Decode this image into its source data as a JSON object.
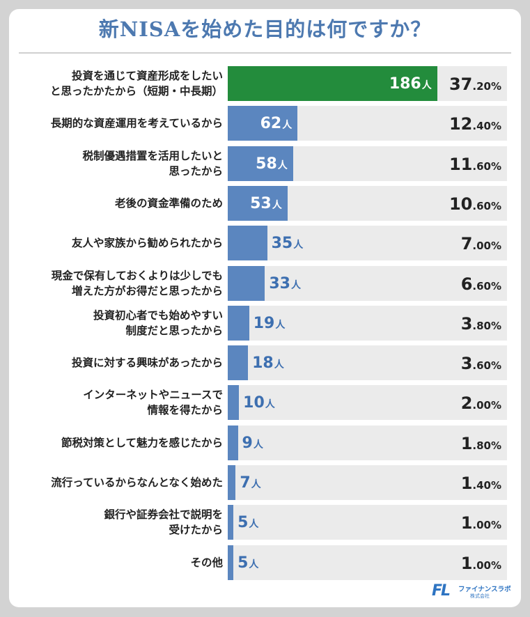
{
  "chart_data": {
    "type": "bar",
    "orientation": "horizontal",
    "title": "新NISAを始めた目的は何ですか？",
    "categories": [
      "投資を通じて資産形成をしたい\nと思ったかたから（短期・中長期）",
      "長期的な資産運用を考えているから",
      "税制優遇措置を活用したいと\n思ったから",
      "老後の資金準備のため",
      "友人や家族から勧められたから",
      "現金で保有しておくよりは少しでも\n増えた方がお得だと思ったから",
      "投資初心者でも始めやすい\n制度だと思ったから",
      "投資に対する興味があったから",
      "インターネットやニュースで\n情報を得たから",
      "節税対策として魅力を感じたから",
      "流行っているからなんとなく始めた",
      "銀行や証券会社で説明を\n受けたから",
      "その他"
    ],
    "values": [
      186,
      62,
      58,
      53,
      35,
      33,
      19,
      18,
      10,
      9,
      7,
      5,
      5
    ],
    "count_unit": "人",
    "percentages_int": [
      "37",
      "12",
      "11",
      "10",
      "7",
      "6",
      "3",
      "3",
      "2",
      "1",
      "1",
      "1",
      "1"
    ],
    "percentages_dec": [
      ".20%",
      ".40%",
      ".60%",
      ".60%",
      ".00%",
      ".60%",
      ".80%",
      ".60%",
      ".00%",
      ".80%",
      ".40%",
      ".00%",
      ".00%"
    ],
    "percentages": [
      37.2,
      12.4,
      11.6,
      10.6,
      7.0,
      6.6,
      3.8,
      3.6,
      2.0,
      1.8,
      1.4,
      1.0,
      1.0
    ],
    "xlim": [
      0,
      248
    ],
    "colors": {
      "top": "#238c3c",
      "default": "#5b86bf",
      "row_bg": "#ebebeb",
      "label_inside": "#ffffff",
      "label_outside": "#3d6fb0"
    }
  },
  "logo": {
    "mark": "FL",
    "line1": "ファイナンスラボ",
    "line2": "株式会社",
    "color": "#2e74c2"
  }
}
